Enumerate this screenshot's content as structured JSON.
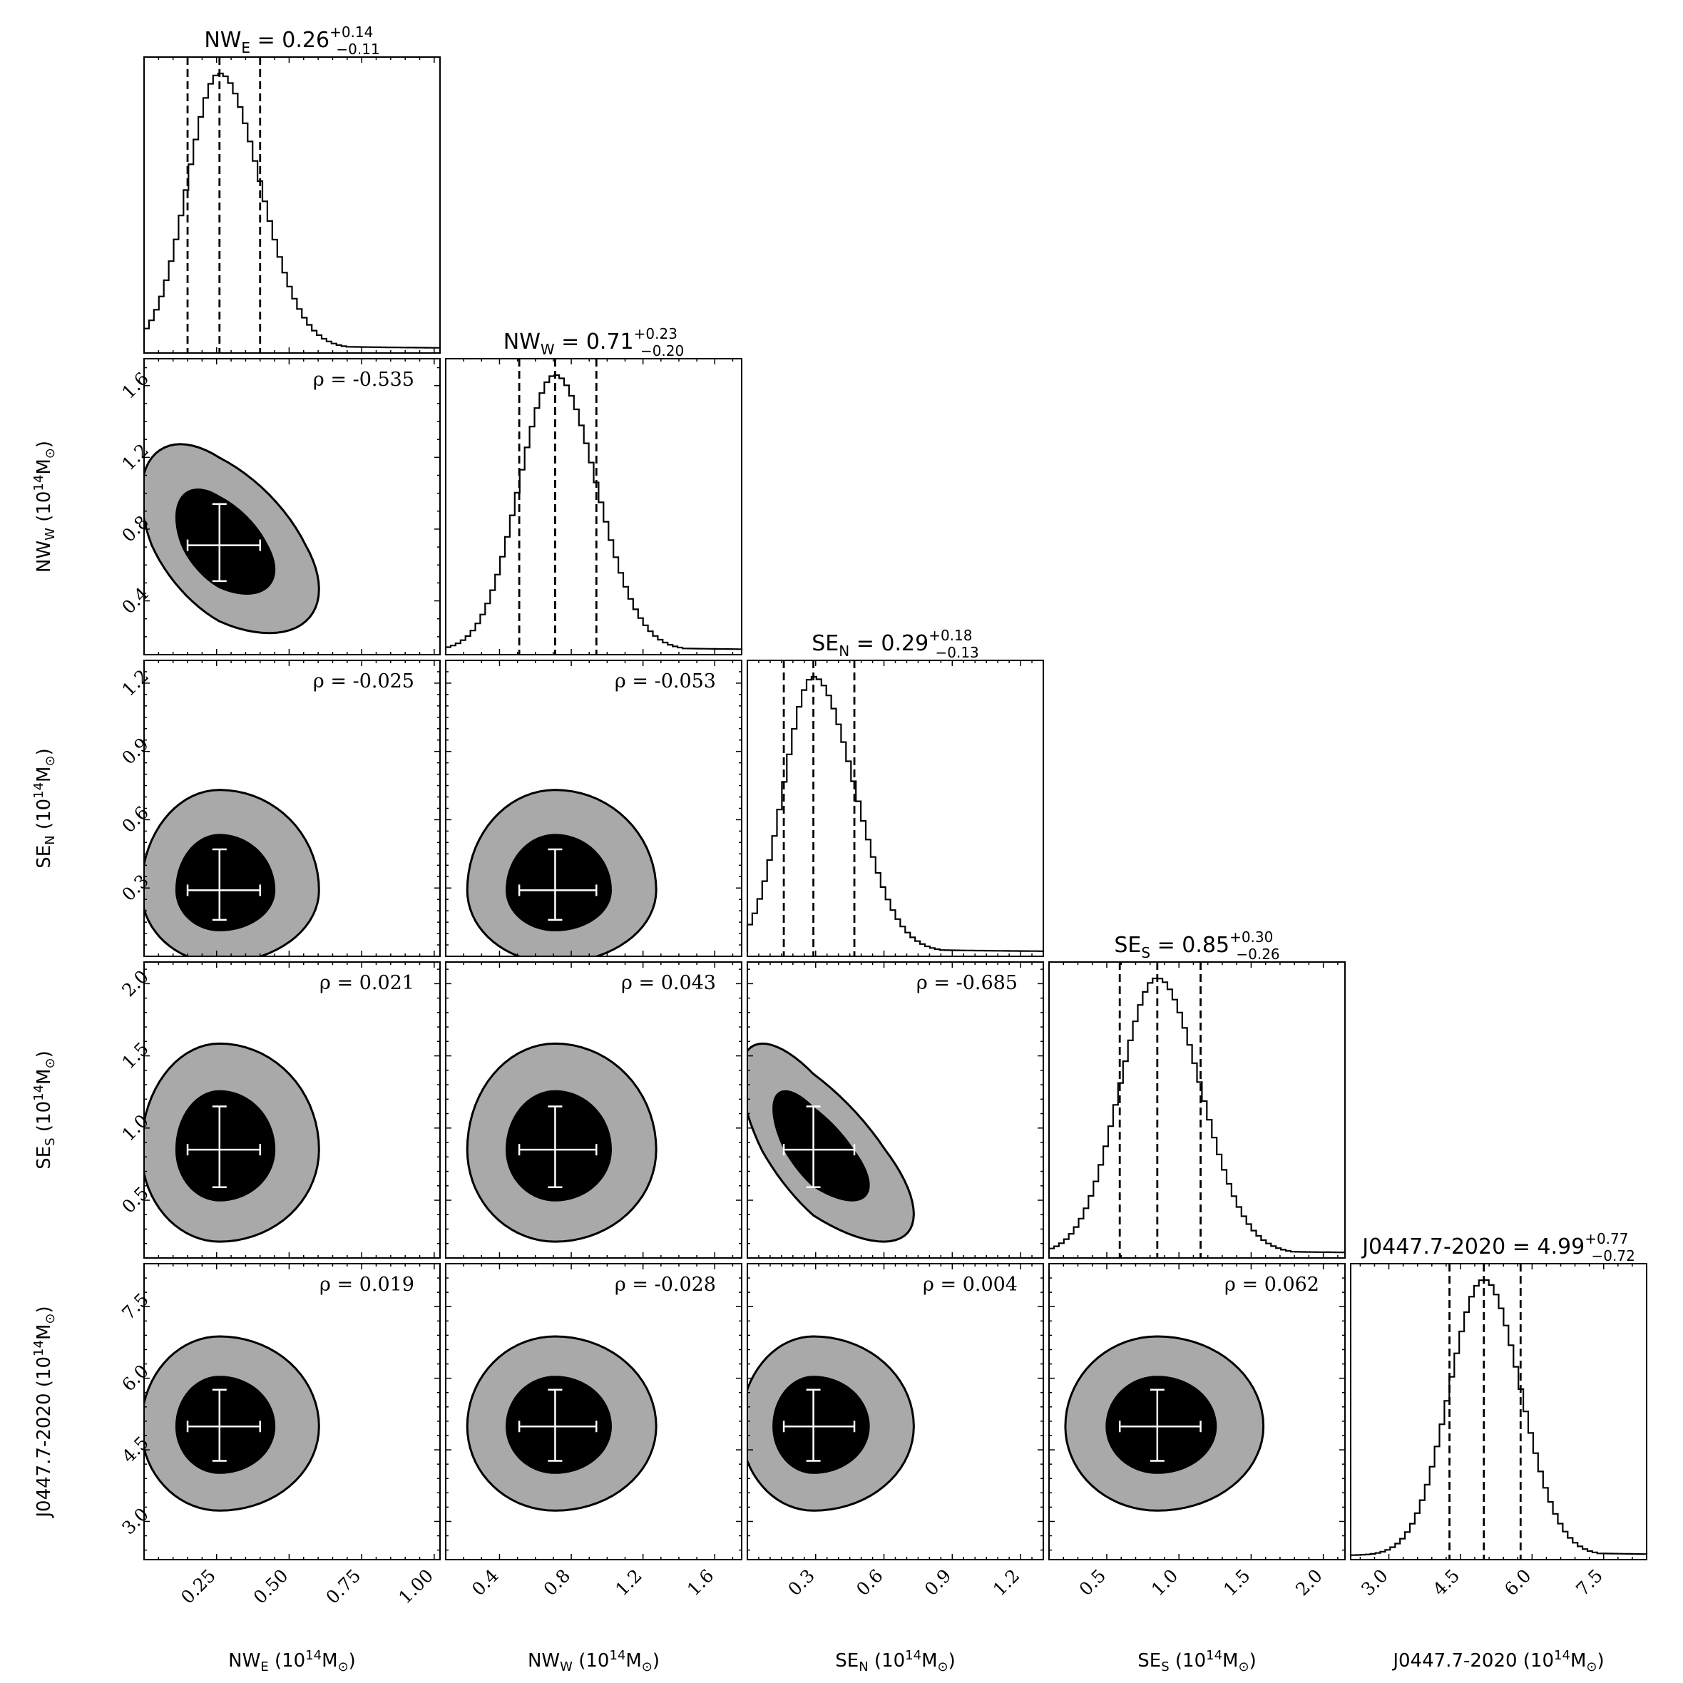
{
  "chart_data": {
    "type": "corner",
    "parameters": [
      {
        "key": "NWE",
        "name": "NW",
        "sub": "E",
        "unit_label": "NWₑ",
        "median": 0.26,
        "plus": "+0.14",
        "minus": "−0.11",
        "lo": 0.15,
        "hi": 0.4,
        "title_value": "0.26",
        "range": [
          0.0,
          1.02
        ],
        "ticks": [
          0.25,
          0.5,
          0.75,
          1.0
        ],
        "tick_labels": [
          "0.25",
          "0.50",
          "0.75",
          "1.00"
        ],
        "minor_step": 0.05
      },
      {
        "key": "NWW",
        "name": "NW",
        "sub": "W",
        "median": 0.71,
        "plus": "+0.23",
        "minus": "−0.20",
        "lo": 0.51,
        "hi": 0.94,
        "title_value": "0.71",
        "range": [
          0.1,
          1.75
        ],
        "ticks": [
          0.4,
          0.8,
          1.2,
          1.6
        ],
        "tick_labels": [
          "0.4",
          "0.8",
          "1.2",
          "1.6"
        ],
        "minor_step": 0.1
      },
      {
        "key": "SEN",
        "name": "SE",
        "sub": "N",
        "median": 0.29,
        "plus": "+0.18",
        "minus": "−0.13",
        "lo": 0.16,
        "hi": 0.47,
        "title_value": "0.29",
        "range": [
          0.0,
          1.3
        ],
        "ticks": [
          0.3,
          0.6,
          0.9,
          1.2
        ],
        "tick_labels": [
          "0.3",
          "0.6",
          "0.9",
          "1.2"
        ],
        "minor_step": 0.05
      },
      {
        "key": "SES",
        "name": "SE",
        "sub": "S",
        "median": 0.85,
        "plus": "+0.30",
        "minus": "−0.26",
        "lo": 0.59,
        "hi": 1.15,
        "title_value": "0.85",
        "range": [
          0.1,
          2.15
        ],
        "ticks": [
          0.5,
          1.0,
          1.5,
          2.0
        ],
        "tick_labels": [
          "0.5",
          "1.0",
          "1.5",
          "2.0"
        ],
        "minor_step": 0.1
      },
      {
        "key": "J0447",
        "name": "J0447.7-2020",
        "sub": "",
        "median": 4.99,
        "plus": "+0.77",
        "minus": "−0.72",
        "lo": 4.27,
        "hi": 5.76,
        "title_value": "4.99",
        "range": [
          2.2,
          8.4
        ],
        "ticks": [
          3.0,
          4.5,
          6.0,
          7.5
        ],
        "tick_labels": [
          "3.0",
          "4.5",
          "6.0",
          "7.5"
        ],
        "minor_step": 0.3
      }
    ],
    "unit": "(10",
    "unit_exp": "14",
    "unit_tail": "M",
    "unit_sun": "⊙",
    "unit_close": ")",
    "correlations": [
      {
        "row": 1,
        "col": 0,
        "label": "ρ = -0.535"
      },
      {
        "row": 2,
        "col": 0,
        "label": "ρ = -0.025"
      },
      {
        "row": 2,
        "col": 1,
        "label": "ρ = -0.053"
      },
      {
        "row": 3,
        "col": 0,
        "label": "ρ = 0.021"
      },
      {
        "row": 3,
        "col": 1,
        "label": "ρ = 0.043"
      },
      {
        "row": 3,
        "col": 2,
        "label": "ρ = -0.685"
      },
      {
        "row": 4,
        "col": 0,
        "label": "ρ = 0.019"
      },
      {
        "row": 4,
        "col": 1,
        "label": "ρ = -0.028"
      },
      {
        "row": 4,
        "col": 2,
        "label": "ρ = 0.004"
      },
      {
        "row": 4,
        "col": 3,
        "label": "ρ = 0.062"
      }
    ],
    "pair_skew": [
      {
        "row": 1,
        "col": 0,
        "skew": -0.5
      },
      {
        "row": 3,
        "col": 2,
        "skew": -0.7
      }
    ],
    "contour_colors": {
      "outer": "#a9a9a9",
      "inner": "#000000",
      "cross": "#ffffff"
    },
    "title_equals": " = "
  }
}
